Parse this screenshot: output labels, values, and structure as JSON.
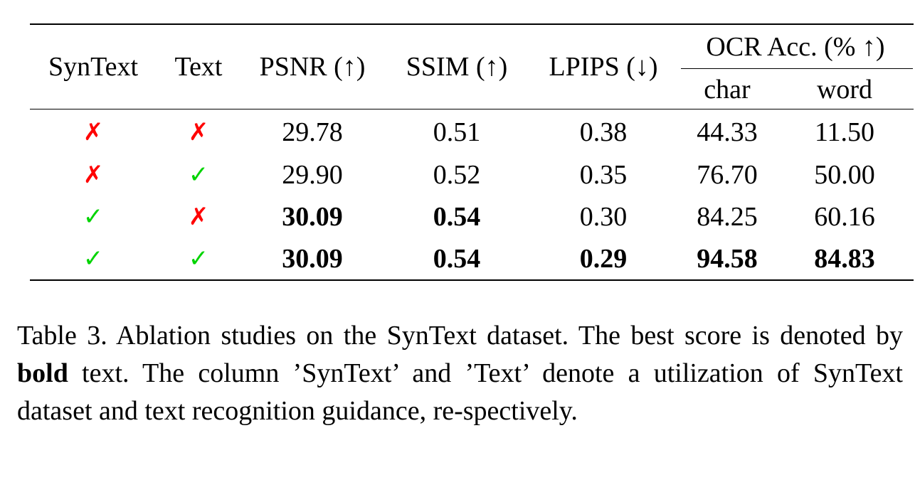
{
  "table": {
    "headers": {
      "syntext": "SynText",
      "text": "Text",
      "psnr": "PSNR (↑)",
      "ssim": "SSIM (↑)",
      "lpips": "LPIPS (↓)",
      "ocr_group": "OCR Acc. (% ↑)",
      "char": "char",
      "word": "word"
    },
    "rows": [
      {
        "syntext": "✗",
        "text": "✗",
        "psnr": "29.78",
        "ssim": "0.51",
        "lpips": "0.38",
        "char": "44.33",
        "word": "11.50"
      },
      {
        "syntext": "✗",
        "text": "✓",
        "psnr": "29.90",
        "ssim": "0.52",
        "lpips": "0.35",
        "char": "76.70",
        "word": "50.00"
      },
      {
        "syntext": "✓",
        "text": "✗",
        "psnr": "30.09",
        "ssim": "0.54",
        "lpips": "0.30",
        "char": "84.25",
        "word": "60.16"
      },
      {
        "syntext": "✓",
        "text": "✓",
        "psnr": "30.09",
        "ssim": "0.54",
        "lpips": "0.29",
        "char": "94.58",
        "word": "84.83"
      }
    ],
    "bold_cells": [
      [
        2,
        "psnr"
      ],
      [
        2,
        "ssim"
      ],
      [
        3,
        "psnr"
      ],
      [
        3,
        "ssim"
      ],
      [
        3,
        "lpips"
      ],
      [
        3,
        "char"
      ],
      [
        3,
        "word"
      ]
    ]
  },
  "caption": {
    "part1": "Table 3. Ablation studies on the SynText dataset. The best score is denoted by ",
    "bold_word": "bold",
    "part2": " text. The column ’SynText’ and ’Text’ denote a utilization of SynText dataset and text recognition guidance, re-spectively."
  },
  "colors": {
    "cross": "#ff0000",
    "check": "#00d400"
  }
}
